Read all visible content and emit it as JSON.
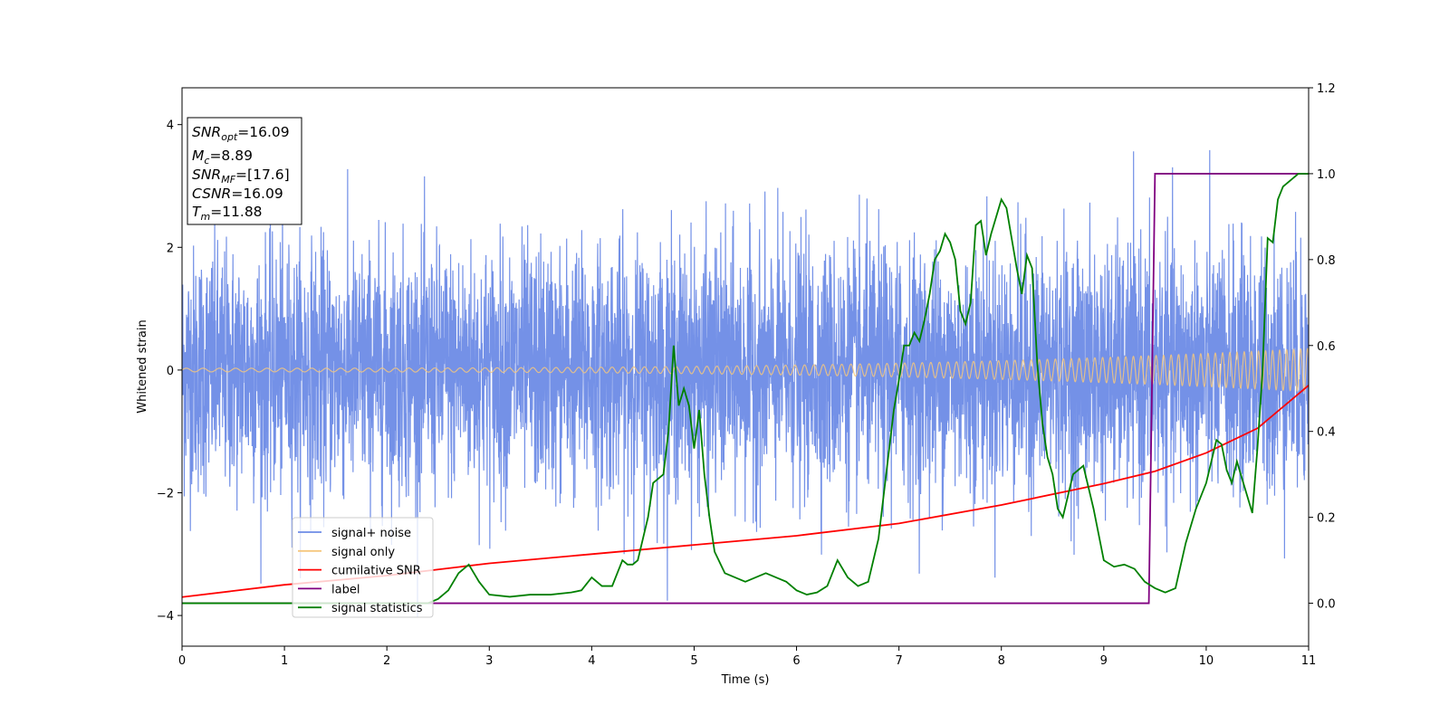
{
  "chart_data": {
    "type": "line",
    "xlabel": "Time (s)",
    "ylabel": "Whitened strain",
    "xlim": [
      0,
      11
    ],
    "ylim": [
      -4.5,
      4.6
    ],
    "ylim_right": [
      -0.1,
      1.2
    ],
    "x_ticks": [
      "0",
      "1",
      "2",
      "3",
      "4",
      "5",
      "6",
      "7",
      "8",
      "9",
      "10",
      "11"
    ],
    "y_ticks": [
      "−4",
      "−2",
      "0",
      "2",
      "4"
    ],
    "y_ticks_right": [
      "0.0",
      "0.2",
      "0.4",
      "0.6",
      "0.8",
      "1.0",
      "1.2"
    ],
    "y_tick_values": [
      -4,
      -2,
      0,
      2,
      4
    ],
    "y_tick_values_right": [
      0.0,
      0.2,
      0.4,
      0.6,
      0.8,
      1.0,
      1.2
    ],
    "info_box": {
      "snr_opt": {
        "symbol": "SNR",
        "sub": "opt",
        "value": "=16.09"
      },
      "mc": {
        "symbol": "M",
        "sub": "c",
        "value": "=8.89"
      },
      "snr_mf": {
        "symbol": "SNR",
        "sub": "MF",
        "value": "=[17.6]"
      },
      "csnr": {
        "symbol": "CSNR",
        "sub": "",
        "value": "=16.09"
      },
      "tm": {
        "symbol": "T",
        "sub": "m",
        "value": "=11.88"
      }
    },
    "legend": {
      "placement": "lower-left",
      "entries": [
        {
          "label": "signal+ noise",
          "color": "#6d8be6"
        },
        {
          "label": "signal only",
          "color": "#f5c77e"
        },
        {
          "label": "cumilative SNR",
          "color": "#ff0000"
        },
        {
          "label": "label",
          "color": "#800080"
        },
        {
          "label": "signal statistics",
          "color": "#008000"
        }
      ]
    },
    "series": [
      {
        "name": "signal+ noise",
        "axis": "left",
        "color": "#6d8be6",
        "description_stats": {
          "mean": 0,
          "std": 1.0,
          "min": -4.1,
          "max": 3.82
        }
      },
      {
        "name": "signal only",
        "axis": "left",
        "color": "#f5c77e",
        "amplitude_start": 0.03,
        "amplitude_end": 0.35
      },
      {
        "name": "cumilative SNR",
        "axis": "left",
        "color": "#ff0000",
        "x": [
          0,
          1,
          2,
          3,
          4,
          5,
          6,
          7,
          8,
          9,
          9.5,
          10,
          10.5,
          11
        ],
        "y": [
          -3.7,
          -3.5,
          -3.35,
          -3.15,
          -3.0,
          -2.85,
          -2.7,
          -2.5,
          -2.2,
          -1.85,
          -1.65,
          -1.35,
          -0.95,
          -0.25
        ]
      },
      {
        "name": "label",
        "axis": "right",
        "color": "#800080",
        "x": [
          0,
          9.44,
          9.5,
          11
        ],
        "y": [
          0,
          0,
          1,
          1
        ]
      },
      {
        "name": "signal statistics",
        "axis": "right",
        "color": "#008000",
        "x": [
          0,
          2.4,
          2.5,
          2.6,
          2.7,
          2.8,
          2.9,
          3.0,
          3.2,
          3.4,
          3.6,
          3.8,
          3.9,
          4.0,
          4.1,
          4.2,
          4.3,
          4.35,
          4.4,
          4.45,
          4.5,
          4.55,
          4.6,
          4.7,
          4.75,
          4.8,
          4.85,
          4.9,
          4.95,
          5.0,
          5.05,
          5.1,
          5.15,
          5.2,
          5.3,
          5.4,
          5.5,
          5.6,
          5.7,
          5.8,
          5.9,
          6.0,
          6.1,
          6.2,
          6.3,
          6.4,
          6.5,
          6.6,
          6.7,
          6.8,
          6.85,
          6.9,
          6.95,
          7.0,
          7.05,
          7.1,
          7.15,
          7.2,
          7.25,
          7.3,
          7.35,
          7.4,
          7.45,
          7.5,
          7.55,
          7.6,
          7.65,
          7.7,
          7.75,
          7.8,
          7.85,
          7.9,
          7.95,
          8.0,
          8.05,
          8.1,
          8.15,
          8.2,
          8.25,
          8.3,
          8.35,
          8.4,
          8.45,
          8.5,
          8.55,
          8.6,
          8.7,
          8.8,
          8.9,
          9.0,
          9.1,
          9.2,
          9.3,
          9.4,
          9.5,
          9.6,
          9.7,
          9.8,
          9.9,
          10.0,
          10.1,
          10.15,
          10.2,
          10.25,
          10.3,
          10.35,
          10.4,
          10.45,
          10.5,
          10.55,
          10.6,
          10.65,
          10.7,
          10.75,
          10.8,
          10.9,
          11.0
        ],
        "y": [
          0,
          0.0,
          0.01,
          0.03,
          0.07,
          0.09,
          0.05,
          0.02,
          0.015,
          0.02,
          0.02,
          0.025,
          0.03,
          0.06,
          0.04,
          0.04,
          0.1,
          0.09,
          0.09,
          0.1,
          0.15,
          0.2,
          0.28,
          0.3,
          0.4,
          0.6,
          0.46,
          0.5,
          0.46,
          0.36,
          0.45,
          0.3,
          0.2,
          0.12,
          0.07,
          0.06,
          0.05,
          0.06,
          0.07,
          0.06,
          0.05,
          0.03,
          0.02,
          0.025,
          0.04,
          0.1,
          0.06,
          0.04,
          0.05,
          0.15,
          0.25,
          0.35,
          0.45,
          0.52,
          0.6,
          0.6,
          0.63,
          0.61,
          0.66,
          0.72,
          0.8,
          0.82,
          0.86,
          0.84,
          0.8,
          0.68,
          0.65,
          0.7,
          0.88,
          0.89,
          0.81,
          0.86,
          0.9,
          0.94,
          0.92,
          0.85,
          0.78,
          0.72,
          0.81,
          0.78,
          0.56,
          0.42,
          0.34,
          0.3,
          0.22,
          0.2,
          0.3,
          0.32,
          0.22,
          0.1,
          0.085,
          0.09,
          0.08,
          0.05,
          0.035,
          0.025,
          0.035,
          0.14,
          0.22,
          0.28,
          0.38,
          0.37,
          0.31,
          0.28,
          0.33,
          0.29,
          0.25,
          0.21,
          0.36,
          0.54,
          0.85,
          0.84,
          0.94,
          0.97,
          0.98,
          1.0,
          1.0
        ]
      }
    ]
  }
}
